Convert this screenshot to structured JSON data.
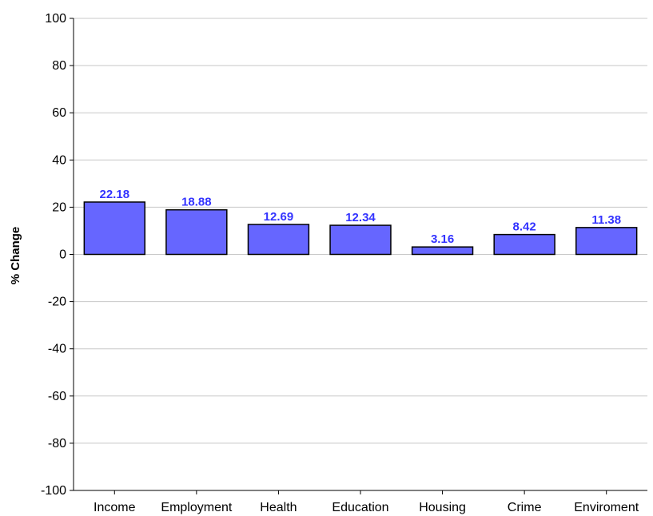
{
  "chart_data": {
    "type": "bar",
    "categories": [
      "Income",
      "Employment",
      "Health",
      "Education",
      "Housing",
      "Crime",
      "Enviroment"
    ],
    "series": [
      {
        "values": [
          22.18,
          18.88,
          12.69,
          12.34,
          3.16,
          8.42,
          11.38
        ]
      }
    ],
    "data_labels": [
      "22.18",
      "18.88",
      "12.69",
      "12.34",
      "3.16",
      "8.42",
      "11.38"
    ],
    "title": "",
    "xlabel": "",
    "ylabel": "% Change",
    "ylim": [
      -100,
      100
    ],
    "yticks": [
      "100",
      "80",
      "60",
      "40",
      "20",
      "0",
      "-20",
      "-40",
      "-60",
      "-80",
      "-100"
    ],
    "grid": true,
    "legend": "none",
    "colors": {
      "bar_fill": "#6666ff",
      "bar_stroke": "#000000",
      "data_label": "#3333ff",
      "grid": "#c8c8c8",
      "axis": "#000000"
    }
  }
}
